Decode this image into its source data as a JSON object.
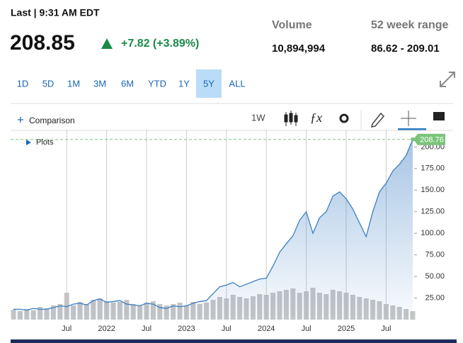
{
  "header": {
    "status": "Last | 9:31 AM EDT",
    "price": "208.85",
    "change": "+7.82 (+3.89%)",
    "volume_label": "Volume",
    "volume": "10,894,994",
    "range_label": "52 week range",
    "range": "86.62 - 209.01"
  },
  "ranges": {
    "items": [
      "1D",
      "5D",
      "1M",
      "3M",
      "6M",
      "YTD",
      "1Y",
      "5Y",
      "ALL"
    ],
    "active": 7
  },
  "toolbar": {
    "comparison": "Comparison",
    "interval": "1W",
    "plots": "Plots"
  },
  "chart_data": {
    "type": "line",
    "categories": [
      null,
      null,
      null,
      null,
      null,
      null,
      null,
      null,
      "Jul",
      null,
      null,
      null,
      null,
      null,
      "2022",
      null,
      null,
      null,
      null,
      null,
      "Jul",
      null,
      null,
      null,
      null,
      null,
      "2023",
      null,
      null,
      null,
      null,
      null,
      "Jul",
      null,
      null,
      null,
      null,
      null,
      "2024",
      null,
      null,
      null,
      null,
      null,
      "Jul",
      null,
      null,
      null,
      null,
      null,
      "2025",
      null,
      null,
      null,
      null,
      null,
      "Jul",
      null,
      null,
      null,
      null
    ],
    "values": [
      12,
      12,
      11,
      13,
      12,
      12,
      14,
      16,
      15,
      18,
      19,
      17,
      22,
      24,
      20,
      21,
      22,
      18,
      17,
      16,
      19,
      18,
      14,
      13,
      16,
      15,
      16,
      19,
      21,
      22,
      30,
      38,
      40,
      43,
      38,
      41,
      44,
      47,
      48,
      62,
      78,
      88,
      97,
      115,
      125,
      100,
      118,
      125,
      143,
      148,
      140,
      128,
      112,
      96,
      125,
      148,
      158,
      172,
      180,
      190,
      208.76
    ],
    "color": "#3d7fc4",
    "volume": {
      "values": [
        14,
        12,
        15,
        13,
        18,
        16,
        20,
        22,
        38,
        20,
        25,
        22,
        28,
        30,
        26,
        24,
        25,
        28,
        22,
        20,
        24,
        26,
        22,
        20,
        22,
        24,
        20,
        25,
        22,
        24,
        28,
        32,
        30,
        35,
        32,
        30,
        33,
        36,
        35,
        38,
        40,
        42,
        44,
        38,
        40,
        45,
        38,
        36,
        42,
        40,
        38,
        35,
        32,
        30,
        28,
        26,
        22,
        20,
        18,
        15,
        12
      ],
      "color": "#b8b8b8",
      "ylim": [
        0,
        100
      ]
    },
    "ylim": [
      0,
      220
    ],
    "yticks": [
      {
        "value": 25,
        "label": "25.00"
      },
      {
        "value": 50,
        "label": "50.00"
      },
      {
        "value": 75,
        "label": "75.00"
      },
      {
        "value": 100,
        "label": "100.00"
      },
      {
        "value": 125,
        "label": "125.00"
      },
      {
        "value": 150,
        "label": "150.00"
      },
      {
        "value": 175,
        "label": "175.00"
      },
      {
        "value": 200,
        "label": "200.00"
      }
    ],
    "grid": true,
    "last_color": "#7bc47b"
  }
}
